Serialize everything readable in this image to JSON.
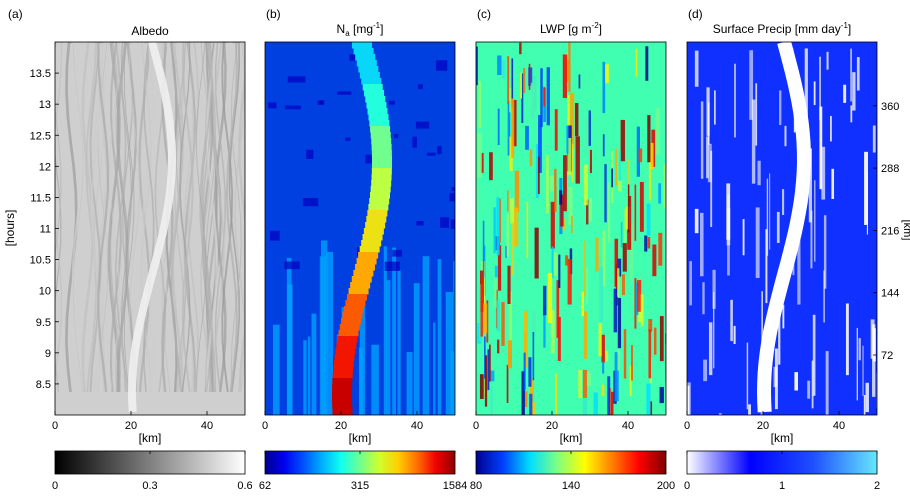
{
  "chart_data": [
    {
      "type": "heatmap",
      "panel_label": "(a)",
      "title": "Albedo",
      "xlabel": "[km]",
      "ylabel": "[hours]",
      "x_ticks": [
        0,
        20,
        40
      ],
      "xlim": [
        0,
        50
      ],
      "y_ticks": [
        "8.5",
        "9",
        "9.5",
        "10",
        "10.5",
        "11",
        "11.5",
        "12",
        "12.5",
        "13",
        "13.5"
      ],
      "ylim": [
        8,
        14
      ],
      "colorbar": {
        "min": 0,
        "max": 0.6,
        "ticks": [
          "0",
          "0.3",
          "0.6"
        ],
        "colors": [
          "#000000",
          "#555555",
          "#aaaaaa",
          "#ffffff"
        ]
      }
    },
    {
      "type": "heatmap",
      "panel_label": "(b)",
      "title_main": "N",
      "title_sub": "a",
      "title_units": " [mg",
      "title_exp": "-1",
      "title_close": "]",
      "xlabel": "[km]",
      "x_ticks": [
        0,
        20,
        40
      ],
      "xlim": [
        0,
        50
      ],
      "colorbar": {
        "min": 62,
        "max": 1584,
        "ticks": [
          "62",
          "315",
          "1584"
        ],
        "colors": [
          "#00008f",
          "#0000ef",
          "#0050ff",
          "#00afff",
          "#10ffef",
          "#70ff8f",
          "#cfff30",
          "#ffcf00",
          "#ff7000",
          "#ef0000",
          "#8f0000"
        ]
      }
    },
    {
      "type": "heatmap",
      "panel_label": "(c)",
      "title_main": "LWP [g m",
      "title_exp": "-2",
      "title_close": "]",
      "xlabel": "[km]",
      "x_ticks": [
        0,
        20,
        40
      ],
      "xlim": [
        0,
        50
      ],
      "colorbar": {
        "min": 80,
        "max": 200,
        "ticks": [
          "80",
          "140",
          "200"
        ],
        "colors": [
          "#00008f",
          "#0040ff",
          "#00dfff",
          "#80ff80",
          "#ffff00",
          "#ff8000",
          "#ff0000",
          "#800000"
        ]
      }
    },
    {
      "type": "heatmap",
      "panel_label": "(d)",
      "title_main": "Surface Precip [mm day",
      "title_exp": "-1",
      "title_close": "]",
      "xlabel": "[km]",
      "x_ticks": [
        0,
        20,
        40
      ],
      "xlim": [
        0,
        50
      ],
      "y2label": "[km]",
      "y2_ticks": [
        "72",
        "144",
        "216",
        "288",
        "360"
      ],
      "colorbar": {
        "min": 0,
        "max": 2,
        "ticks": [
          "0",
          "1",
          "2"
        ],
        "colors": [
          "#ffffff",
          "#0000ff",
          "#2050ff",
          "#66e8ff"
        ]
      }
    }
  ]
}
